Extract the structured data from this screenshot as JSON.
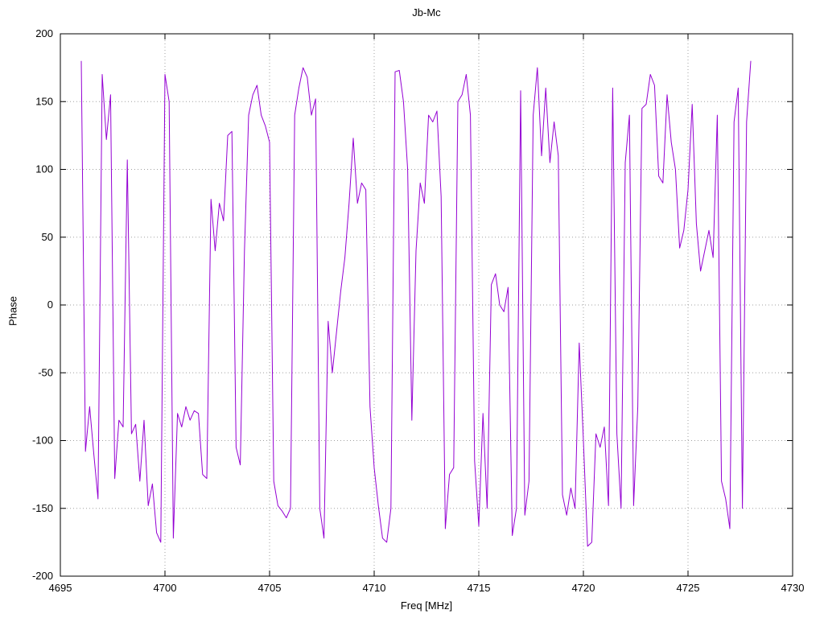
{
  "chart_data": {
    "type": "line",
    "title": "Jb-Mc",
    "xlabel": "Freq [MHz]",
    "ylabel": "Phase",
    "xlim": [
      4695,
      4730
    ],
    "ylim": [
      -200,
      200
    ],
    "xticks": [
      4695,
      4700,
      4705,
      4710,
      4715,
      4720,
      4725,
      4730
    ],
    "yticks": [
      -200,
      -150,
      -100,
      -50,
      0,
      50,
      100,
      150,
      200
    ],
    "grid": true,
    "grid_color": "#a0a0a0",
    "line_color": "#9400d3",
    "x": [
      4696.0,
      4696.2,
      4696.4,
      4696.6,
      4696.8,
      4697.0,
      4697.2,
      4697.4,
      4697.6,
      4697.8,
      4698.0,
      4698.2,
      4698.4,
      4698.6,
      4698.8,
      4699.0,
      4699.2,
      4699.4,
      4699.6,
      4699.8,
      4700.0,
      4700.2,
      4700.4,
      4700.6,
      4700.8,
      4701.0,
      4701.2,
      4701.4,
      4701.6,
      4701.8,
      4702.0,
      4702.2,
      4702.4,
      4702.6,
      4702.8,
      4703.0,
      4703.2,
      4703.4,
      4703.6,
      4703.8,
      4704.0,
      4704.2,
      4704.4,
      4704.6,
      4704.8,
      4705.0,
      4705.2,
      4705.4,
      4705.6,
      4705.8,
      4706.0,
      4706.2,
      4706.4,
      4706.6,
      4706.8,
      4707.0,
      4707.2,
      4707.4,
      4707.6,
      4707.8,
      4708.0,
      4708.2,
      4708.4,
      4708.6,
      4708.8,
      4709.0,
      4709.2,
      4709.4,
      4709.6,
      4709.8,
      4710.0,
      4710.2,
      4710.4,
      4710.6,
      4710.8,
      4711.0,
      4711.2,
      4711.4,
      4711.6,
      4711.8,
      4712.0,
      4712.2,
      4712.4,
      4712.6,
      4712.8,
      4713.0,
      4713.2,
      4713.4,
      4713.6,
      4713.8,
      4714.0,
      4714.2,
      4714.4,
      4714.6,
      4714.8,
      4715.0,
      4715.2,
      4715.4,
      4715.6,
      4715.8,
      4716.0,
      4716.2,
      4716.4,
      4716.6,
      4716.8,
      4717.0,
      4717.2,
      4717.4,
      4717.6,
      4717.8,
      4718.0,
      4718.2,
      4718.4,
      4718.6,
      4718.8,
      4719.0,
      4719.2,
      4719.4,
      4719.6,
      4719.8,
      4720.0,
      4720.2,
      4720.4,
      4720.6,
      4720.8,
      4721.0,
      4721.2,
      4721.4,
      4721.6,
      4721.8,
      4722.0,
      4722.2,
      4722.4,
      4722.6,
      4722.8,
      4723.0,
      4723.2,
      4723.4,
      4723.6,
      4723.8,
      4724.0,
      4724.2,
      4724.4,
      4724.6,
      4724.8,
      4725.0,
      4725.2,
      4725.4,
      4725.6,
      4725.8,
      4726.0,
      4726.2,
      4726.4,
      4726.6,
      4726.8,
      4727.0,
      4727.2,
      4727.4,
      4727.6,
      4727.8,
      4728.0
    ],
    "y": [
      180,
      -108,
      -75,
      -110,
      -143,
      170,
      122,
      155,
      -128,
      -85,
      -90,
      107,
      -95,
      -88,
      -130,
      -85,
      -148,
      -132,
      -168,
      -175,
      170,
      150,
      -172,
      -80,
      -90,
      -75,
      -85,
      -78,
      -80,
      -125,
      -128,
      78,
      40,
      75,
      62,
      125,
      128,
      -105,
      -118,
      40,
      140,
      155,
      162,
      140,
      132,
      120,
      -130,
      -148,
      -152,
      -157,
      -150,
      140,
      160,
      175,
      168,
      140,
      152,
      -150,
      -172,
      -12,
      -50,
      -20,
      10,
      35,
      75,
      123,
      75,
      90,
      85,
      -75,
      -120,
      -148,
      -172,
      -175,
      -150,
      172,
      173,
      150,
      100,
      -85,
      40,
      90,
      75,
      140,
      135,
      143,
      80,
      -165,
      -125,
      -120,
      150,
      155,
      170,
      140,
      -115,
      -163,
      -80,
      -150,
      15,
      23,
      0,
      -5,
      13,
      -170,
      -150,
      158,
      -155,
      -130,
      140,
      175,
      110,
      160,
      105,
      135,
      110,
      -140,
      -155,
      -135,
      -150,
      -28,
      -100,
      -178,
      -175,
      -95,
      -105,
      -90,
      -148,
      160,
      -95,
      -150,
      105,
      140,
      -148,
      -75,
      145,
      148,
      170,
      162,
      95,
      90,
      155,
      120,
      100,
      42,
      55,
      85,
      148,
      60,
      25,
      40,
      55,
      35,
      140,
      -130,
      -143,
      -165,
      135,
      160,
      -150,
      135,
      180
    ]
  }
}
